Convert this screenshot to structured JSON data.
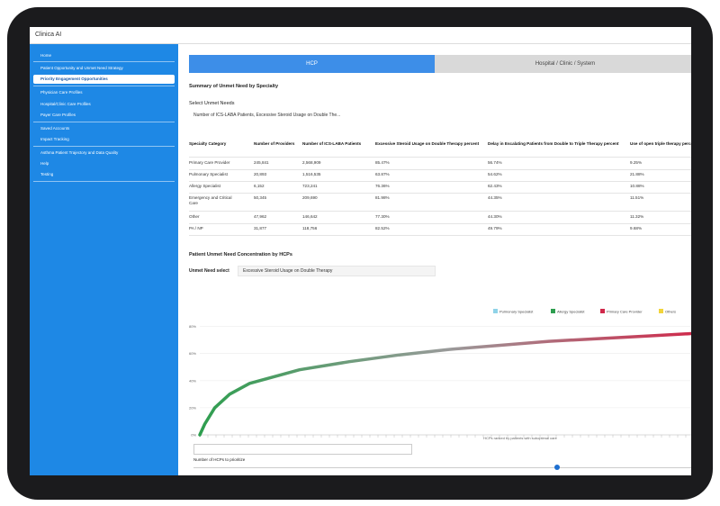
{
  "app": {
    "logo": "Clinica AI"
  },
  "sidebar": [
    "Home",
    "Patient Opportunity and Unmet Need Strategy",
    "Priority Engagement Opportunities",
    "Physician Care Profiles",
    "Hospital/Clinic Care Profiles",
    "Payer Care Profiles",
    "Saved Accounts",
    "Impact Tracking",
    "Asthma Patient Trajectory and Data Quality",
    "Help",
    "Testing"
  ],
  "tabs": [
    "HCP",
    "Hospital / Clinic / System"
  ],
  "summary": {
    "title": "Summary of Unmet Need by Specialty",
    "select_label": "Select Unmet Needs",
    "select_value": "Number of ICS-LABA Patients, Excessive Steroid Usage on Double The..."
  },
  "table": {
    "columns": [
      "Specialty Category",
      "Number of Providers",
      "Number of ICS-LABA Patients",
      "Excessive Steroid Usage on Double Therapy percent",
      "Delay in Escalating Patients from Double to Triple Therapy percent",
      "Use of open triple therapy percent"
    ],
    "rows": [
      [
        "Primary Care Provider",
        "245,841",
        "2,568,909",
        "85.47%",
        "56.74%",
        "9.25%"
      ],
      [
        "Pulmonary Specialist",
        "20,893",
        "1,516,535",
        "63.87%",
        "54.62%",
        "21.88%"
      ],
      [
        "Allergy Specialist",
        "6,152",
        "723,241",
        "76.36%",
        "62.43%",
        "10.88%"
      ],
      [
        "Emergency and Critical Care",
        "50,345",
        "209,690",
        "81.98%",
        "44.35%",
        "11.51%"
      ],
      [
        "Other",
        "47,962",
        "146,642",
        "77.30%",
        "44.30%",
        "11.32%"
      ],
      [
        "PA / NP",
        "31,877",
        "118,756",
        "82.52%",
        "49.79%",
        "9.68%"
      ]
    ]
  },
  "concentration": {
    "title": "Patient Unmet Need Concentration by HCPs",
    "select_label": "Unmet Need select",
    "select_value": "Excessive Steroid Usage on Double Therapy",
    "prioritize_label": "Number of HCPs to prioritize"
  },
  "chart_data": {
    "type": "line",
    "x_label": "HCPs ranked by patients with suboptimal care",
    "legend": [
      {
        "name": "Pulmonary Specialist",
        "color": "#8fd3e8"
      },
      {
        "name": "Allergy Specialist",
        "color": "#2e9e4f"
      },
      {
        "name": "Primary Care Provider",
        "color": "#d0284a"
      },
      {
        "name": "Others",
        "color": "#f2d43a"
      }
    ],
    "x": [
      0,
      1,
      3,
      6,
      10,
      20,
      30,
      40,
      50,
      60,
      70,
      80,
      90,
      100
    ],
    "series": [
      {
        "values": [
          0,
          8,
          20,
          30,
          38,
          48,
          54,
          59,
          63,
          66,
          69,
          71,
          73,
          75
        ],
        "gradient": [
          "#2e9e4f",
          "#9a9a9a",
          "#d0284a"
        ]
      }
    ],
    "xlim": [
      0,
      100
    ],
    "ylim": [
      0,
      85
    ],
    "yticks": [
      {
        "value": 0,
        "label": "0%"
      },
      {
        "value": 20,
        "label": "20%"
      },
      {
        "value": 40,
        "label": "40%"
      },
      {
        "value": 60,
        "label": "60%"
      },
      {
        "value": 80,
        "label": "80%"
      }
    ],
    "grid": true
  }
}
